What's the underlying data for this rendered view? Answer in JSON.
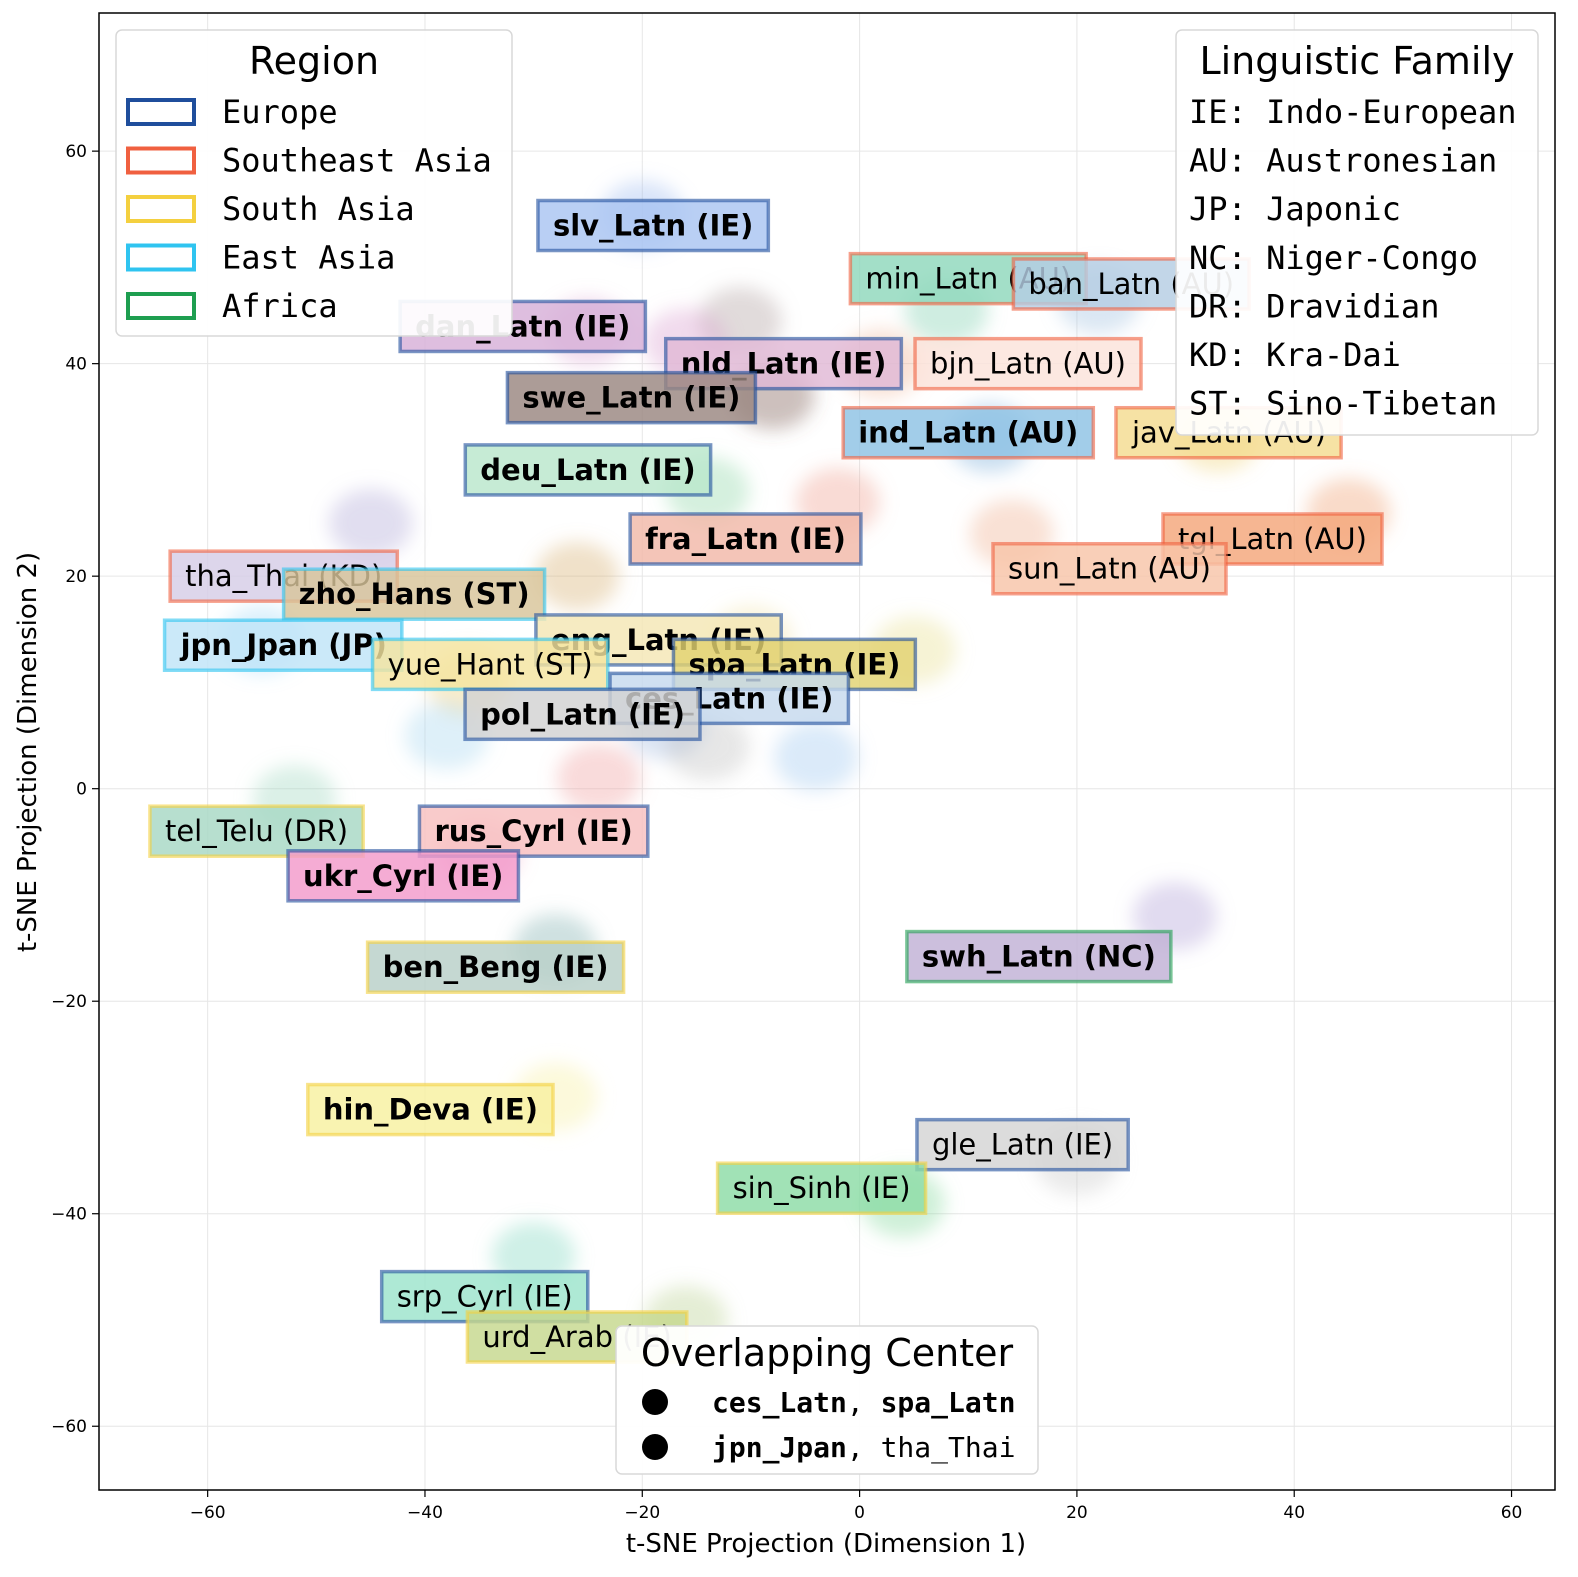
{
  "chart_data": {
    "type": "scatter",
    "xlabel": "t-SNE Projection (Dimension 1)",
    "ylabel": "t-SNE Projection (Dimension 2)",
    "xlim": [
      -70,
      64
    ],
    "ylim": [
      -66,
      73
    ],
    "xticks": [
      -60,
      -40,
      -20,
      0,
      20,
      40,
      60
    ],
    "yticks": [
      60,
      40,
      20,
      0,
      -20,
      -40,
      -60
    ],
    "grid": true,
    "region_colors": {
      "Europe": "#1f4e9c",
      "Southeast Asia": "#f06040",
      "South Asia": "#f4d03f",
      "East Asia": "#2fc4f0",
      "Africa": "#1e9e50"
    },
    "clusters": [
      {
        "x": -20,
        "y": 54,
        "color": "#9ab8f0"
      },
      {
        "x": -25,
        "y": 43,
        "color": "#d9a0d0"
      },
      {
        "x": -11,
        "y": 44,
        "color": "#b0a0a0"
      },
      {
        "x": -16,
        "y": 42,
        "color": "#d9a0d0"
      },
      {
        "x": 8,
        "y": 45,
        "color": "#80d0b0"
      },
      {
        "x": 22,
        "y": 46,
        "color": "#a0c0e0"
      },
      {
        "x": -8,
        "y": 37,
        "color": "#7a5a50"
      },
      {
        "x": 2,
        "y": 40,
        "color": "#f0b090"
      },
      {
        "x": 12,
        "y": 33,
        "color": "#70a8d8"
      },
      {
        "x": 33,
        "y": 33,
        "color": "#f0d070"
      },
      {
        "x": 45,
        "y": 26,
        "color": "#f0a070"
      },
      {
        "x": -14,
        "y": 28,
        "color": "#90d8a8"
      },
      {
        "x": -2,
        "y": 27,
        "color": "#f0a090"
      },
      {
        "x": 14,
        "y": 24,
        "color": "#f0b090"
      },
      {
        "x": -45,
        "y": 25,
        "color": "#b0a8d8"
      },
      {
        "x": -26,
        "y": 20,
        "color": "#d8b070"
      },
      {
        "x": -55,
        "y": 14,
        "color": "#9fd8f8"
      },
      {
        "x": -36,
        "y": 10,
        "color": "#f0d070"
      },
      {
        "x": -10,
        "y": 14,
        "color": "#f0e0a0"
      },
      {
        "x": 5,
        "y": 13,
        "color": "#e8e090"
      },
      {
        "x": -18,
        "y": 6,
        "color": "#a0b8e0"
      },
      {
        "x": -38,
        "y": 5,
        "color": "#a8d8f0"
      },
      {
        "x": -14,
        "y": 4,
        "color": "#c0c0c0"
      },
      {
        "x": -4,
        "y": 3,
        "color": "#a0c8f0"
      },
      {
        "x": -24,
        "y": 1,
        "color": "#f0a0a0"
      },
      {
        "x": -52,
        "y": -1,
        "color": "#a0d8c0"
      },
      {
        "x": -35,
        "y": -6,
        "color": "#f0a0c0"
      },
      {
        "x": 29,
        "y": -12,
        "color": "#b0a0d8"
      },
      {
        "x": -28,
        "y": -15,
        "color": "#80b0b0"
      },
      {
        "x": -28,
        "y": -29,
        "color": "#f8f0a0"
      },
      {
        "x": 20,
        "y": -35,
        "color": "#c8c8c8"
      },
      {
        "x": 4,
        "y": -39,
        "color": "#80d898"
      },
      {
        "x": -30,
        "y": -44,
        "color": "#80d8c0"
      },
      {
        "x": -16,
        "y": -50,
        "color": "#b8d090"
      }
    ],
    "labels": [
      {
        "text": "slv_Latn (IE)",
        "x": -19,
        "y": 53,
        "bold": true,
        "fill": "#a9c4f2",
        "edge": "#1f4e9c"
      },
      {
        "text": "min_Latn (AU)",
        "x": 10,
        "y": 48,
        "bold": false,
        "fill": "#8fd8bc",
        "edge": "#f06040"
      },
      {
        "text": "ban_Latn (AU)",
        "x": 25,
        "y": 47.5,
        "bold": false,
        "fill": "#b4cde3",
        "edge": "#f06040"
      },
      {
        "text": "dan_Latn (IE)",
        "x": -31,
        "y": 43.5,
        "bold": true,
        "fill": "#d7b0d8",
        "edge": "#1f4e9c"
      },
      {
        "text": "nld_Latn (IE)",
        "x": -7,
        "y": 40,
        "bold": true,
        "fill": "#e0b8d6",
        "edge": "#1f4e9c"
      },
      {
        "text": "bjn_Latn (AU)",
        "x": 15.5,
        "y": 40,
        "bold": false,
        "fill": "#fbe3da",
        "edge": "#f06040"
      },
      {
        "text": "swe_Latn (IE)",
        "x": -21,
        "y": 36.8,
        "bold": true,
        "fill": "#9a8680",
        "edge": "#1f4e9c"
      },
      {
        "text": "ind_Latn (AU)",
        "x": 10,
        "y": 33.5,
        "bold": true,
        "fill": "#8ec2e4",
        "edge": "#f06040"
      },
      {
        "text": "jav_Latn (AU)",
        "x": 34,
        "y": 33.5,
        "bold": false,
        "fill": "#f4dc90",
        "edge": "#f06040"
      },
      {
        "text": "deu_Latn (IE)",
        "x": -25,
        "y": 30,
        "bold": true,
        "fill": "#b9e6cc",
        "edge": "#1f4e9c"
      },
      {
        "text": "fra_Latn (IE)",
        "x": -10.5,
        "y": 23.5,
        "bold": true,
        "fill": "#f2b8a8",
        "edge": "#1f4e9c"
      },
      {
        "text": "tgl_Latn (AU)",
        "x": 38,
        "y": 23.5,
        "bold": false,
        "fill": "#f4a67a",
        "edge": "#f06040"
      },
      {
        "text": "sun_Latn (AU)",
        "x": 23,
        "y": 20.7,
        "bold": false,
        "fill": "#f8c4a8",
        "edge": "#f06040"
      },
      {
        "text": "tha_Thai (KD)",
        "x": -53,
        "y": 20,
        "bold": false,
        "fill": "#d6cde6",
        "edge": "#f06040"
      },
      {
        "text": "zho_Hans (ST)",
        "x": -41,
        "y": 18.3,
        "bold": true,
        "fill": "#d8c49a",
        "edge": "#2fc4f0"
      },
      {
        "text": "jpn_Jpan (JP)",
        "x": -53,
        "y": 13.5,
        "bold": true,
        "fill": "#bfe4f8",
        "edge": "#2fc4f0"
      },
      {
        "text": "eng_Latn (IE)",
        "x": -18.5,
        "y": 14,
        "bold": true,
        "fill": "#f4e6b4",
        "edge": "#1f4e9c"
      },
      {
        "text": "yue_Hant (ST)",
        "x": -34,
        "y": 11.7,
        "bold": false,
        "fill": "#f4e4a0",
        "edge": "#2fc4f0"
      },
      {
        "text": "spa_Latn (IE)",
        "x": -6,
        "y": 11.7,
        "bold": true,
        "fill": "#e2d270",
        "edge": "#1f4e9c"
      },
      {
        "text": "ces_Latn (IE)",
        "x": -12,
        "y": 8.5,
        "bold": true,
        "fill": "#c6d9ee",
        "edge": "#1f4e9c"
      },
      {
        "text": "pol_Latn (IE)",
        "x": -25.5,
        "y": 7,
        "bold": true,
        "fill": "#d2d2d2",
        "edge": "#1f4e9c"
      },
      {
        "text": "tel_Telu (DR)",
        "x": -55.5,
        "y": -4,
        "bold": false,
        "fill": "#a7d8c4",
        "edge": "#f4d03f"
      },
      {
        "text": "rus_Cyrl (IE)",
        "x": -30,
        "y": -4,
        "bold": true,
        "fill": "#f8c0c0",
        "edge": "#1f4e9c"
      },
      {
        "text": "ukr_Cyrl (IE)",
        "x": -42,
        "y": -8.2,
        "bold": true,
        "fill": "#f39acb",
        "edge": "#1f4e9c"
      },
      {
        "text": "swh_Latn (NC)",
        "x": 16.5,
        "y": -15.8,
        "bold": true,
        "fill": "#c1b1d6",
        "edge": "#1e9e50"
      },
      {
        "text": "ben_Beng (IE)",
        "x": -33.5,
        "y": -16.8,
        "bold": true,
        "fill": "#b8d0c8",
        "edge": "#f4d03f"
      },
      {
        "text": "hin_Deva (IE)",
        "x": -39.5,
        "y": -30.2,
        "bold": true,
        "fill": "#f8f0a0",
        "edge": "#f4d03f"
      },
      {
        "text": "gle_Latn (IE)",
        "x": 15,
        "y": -33.5,
        "bold": false,
        "fill": "#d4d4d4",
        "edge": "#1f4e9c"
      },
      {
        "text": "sin_Sinh (IE)",
        "x": -3.5,
        "y": -37.6,
        "bold": false,
        "fill": "#8cdca6",
        "edge": "#f4d03f"
      },
      {
        "text": "srp_Cyrl (IE)",
        "x": -34.5,
        "y": -47.8,
        "bold": false,
        "fill": "#9ce4cc",
        "edge": "#1f4e9c"
      },
      {
        "text": "urd_Arab (IE)",
        "x": -26,
        "y": -51.6,
        "bold": false,
        "fill": "#c6d88e",
        "edge": "#f4d03f"
      }
    ]
  },
  "legend_region": {
    "title": "Region",
    "items": [
      {
        "label": "Europe",
        "color": "#1f4e9c"
      },
      {
        "label": "Southeast Asia",
        "color": "#f06040"
      },
      {
        "label": "South Asia",
        "color": "#f4d03f"
      },
      {
        "label": "East Asia",
        "color": "#2fc4f0"
      },
      {
        "label": "Africa",
        "color": "#1e9e50"
      }
    ]
  },
  "legend_family": {
    "title": "Linguistic Family",
    "items": [
      "IE: Indo-European",
      "AU: Austronesian",
      "JP: Japonic",
      "NC: Niger-Congo",
      "DR: Dravidian",
      "KD: Kra-Dai",
      "ST: Sino-Tibetan"
    ]
  },
  "legend_overlap": {
    "title": "Overlapping Center",
    "rows": [
      {
        "a": "ces_Latn",
        "sep": ", ",
        "b": "spa_Latn",
        "b_bold": true
      },
      {
        "a": "jpn_Jpan",
        "sep": ", ",
        "b": "tha_Thai",
        "b_bold": false
      }
    ]
  }
}
